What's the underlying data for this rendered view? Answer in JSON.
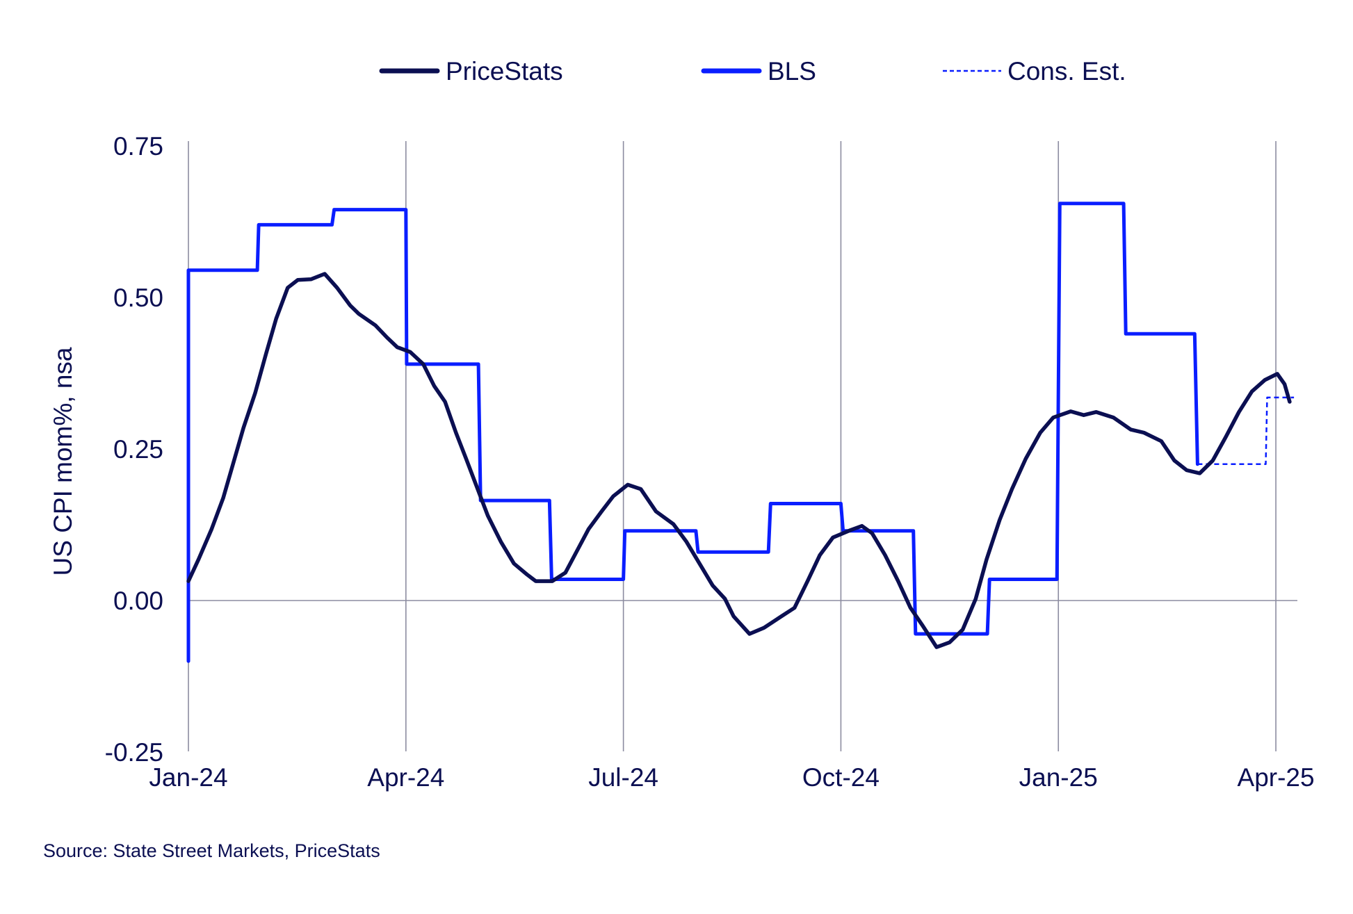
{
  "chart_data": {
    "type": "line",
    "title": "",
    "xlabel": "",
    "ylabel": "US CPI mom%, nsa",
    "ylim": [
      -0.25,
      0.75
    ],
    "yticks": [
      "0.75",
      "0.50",
      "0.25",
      "0.00",
      "-0.25"
    ],
    "ytick_values": [
      0.75,
      0.5,
      0.25,
      0.0,
      -0.25
    ],
    "xticks": [
      "Jan-24",
      "Apr-24",
      "Jul-24",
      "Oct-24",
      "Jan-25",
      "Apr-25"
    ],
    "xtick_values": [
      0,
      3,
      6,
      9,
      12,
      15
    ],
    "x_unit": "months since Jan-24",
    "xlim": [
      0,
      15.25
    ],
    "legend": {
      "placement": "top-center",
      "entries": [
        "PriceStats",
        "BLS",
        "Cons. Est."
      ]
    },
    "colors": {
      "PriceStats": "#0b0f52",
      "BLS": "#0a1eff",
      "Cons. Est.": "#0a1eff",
      "text": "#0b0f52",
      "grid": "#8c8ca0"
    },
    "series": [
      {
        "name": "PriceStats",
        "style": "solid",
        "points": [
          [
            0,
            0.032
          ],
          [
            0.14,
            0.068
          ],
          [
            0.32,
            0.118
          ],
          [
            0.48,
            0.169
          ],
          [
            0.62,
            0.227
          ],
          [
            0.76,
            0.285
          ],
          [
            0.92,
            0.342
          ],
          [
            1.07,
            0.407
          ],
          [
            1.21,
            0.465
          ],
          [
            1.37,
            0.516
          ],
          [
            1.51,
            0.529
          ],
          [
            1.69,
            0.53
          ],
          [
            1.88,
            0.539
          ],
          [
            2.05,
            0.516
          ],
          [
            2.23,
            0.487
          ],
          [
            2.35,
            0.473
          ],
          [
            2.58,
            0.454
          ],
          [
            2.74,
            0.434
          ],
          [
            2.88,
            0.418
          ],
          [
            3.06,
            0.41
          ],
          [
            3.24,
            0.39
          ],
          [
            3.39,
            0.354
          ],
          [
            3.54,
            0.328
          ],
          [
            3.69,
            0.277
          ],
          [
            3.83,
            0.234
          ],
          [
            3.99,
            0.184
          ],
          [
            4.13,
            0.14
          ],
          [
            4.31,
            0.097
          ],
          [
            4.49,
            0.061
          ],
          [
            4.67,
            0.043
          ],
          [
            4.79,
            0.032
          ],
          [
            5.02,
            0.032
          ],
          [
            5.2,
            0.046
          ],
          [
            5.36,
            0.082
          ],
          [
            5.52,
            0.118
          ],
          [
            5.7,
            0.147
          ],
          [
            5.86,
            0.172
          ],
          [
            6.06,
            0.191
          ],
          [
            6.24,
            0.184
          ],
          [
            6.45,
            0.147
          ],
          [
            6.69,
            0.126
          ],
          [
            6.87,
            0.097
          ],
          [
            7.05,
            0.061
          ],
          [
            7.23,
            0.025
          ],
          [
            7.4,
            0.003
          ],
          [
            7.52,
            -0.026
          ],
          [
            7.74,
            -0.055
          ],
          [
            7.94,
            -0.045
          ],
          [
            8.18,
            -0.026
          ],
          [
            8.36,
            -0.012
          ],
          [
            8.54,
            0.032
          ],
          [
            8.71,
            0.075
          ],
          [
            8.89,
            0.104
          ],
          [
            9.13,
            0.116
          ],
          [
            9.29,
            0.123
          ],
          [
            9.43,
            0.111
          ],
          [
            9.61,
            0.075
          ],
          [
            9.79,
            0.032
          ],
          [
            9.96,
            -0.012
          ],
          [
            10.12,
            -0.04
          ],
          [
            10.32,
            -0.077
          ],
          [
            10.5,
            -0.069
          ],
          [
            10.68,
            -0.048
          ],
          [
            10.86,
            0.003
          ],
          [
            11.01,
            0.068
          ],
          [
            11.19,
            0.133
          ],
          [
            11.36,
            0.184
          ],
          [
            11.55,
            0.234
          ],
          [
            11.75,
            0.277
          ],
          [
            11.93,
            0.302
          ],
          [
            12.17,
            0.312
          ],
          [
            12.35,
            0.306
          ],
          [
            12.52,
            0.311
          ],
          [
            12.76,
            0.302
          ],
          [
            13.0,
            0.282
          ],
          [
            13.18,
            0.277
          ],
          [
            13.42,
            0.263
          ],
          [
            13.6,
            0.231
          ],
          [
            13.77,
            0.215
          ],
          [
            13.95,
            0.21
          ],
          [
            14.13,
            0.231
          ],
          [
            14.31,
            0.27
          ],
          [
            14.49,
            0.311
          ],
          [
            14.67,
            0.345
          ],
          [
            14.85,
            0.364
          ],
          [
            15.02,
            0.374
          ],
          [
            15.12,
            0.357
          ],
          [
            15.19,
            0.328
          ]
        ]
      },
      {
        "name": "BLS",
        "style": "step",
        "points": [
          [
            0,
            -0.1
          ],
          [
            0,
            0.545
          ],
          [
            0.95,
            0.545
          ],
          [
            0.97,
            0.62
          ],
          [
            1.98,
            0.62
          ],
          [
            2.01,
            0.645
          ],
          [
            3.0,
            0.645
          ],
          [
            3.01,
            0.39
          ],
          [
            4.0,
            0.39
          ],
          [
            4.03,
            0.165
          ],
          [
            4.98,
            0.165
          ],
          [
            5.01,
            0.035
          ],
          [
            6.0,
            0.035
          ],
          [
            6.02,
            0.115
          ],
          [
            7.0,
            0.115
          ],
          [
            7.03,
            0.08
          ],
          [
            8.0,
            0.08
          ],
          [
            8.03,
            0.16
          ],
          [
            9.0,
            0.16
          ],
          [
            9.03,
            0.115
          ],
          [
            10.0,
            0.115
          ],
          [
            10.03,
            -0.055
          ],
          [
            11.02,
            -0.055
          ],
          [
            11.05,
            0.035
          ],
          [
            11.98,
            0.035
          ],
          [
            12.02,
            0.655
          ],
          [
            12.9,
            0.655
          ],
          [
            12.93,
            0.44
          ],
          [
            13.88,
            0.44
          ],
          [
            13.92,
            0.225
          ]
        ]
      },
      {
        "name": "Cons. Est.",
        "style": "dashed",
        "points": [
          [
            13.92,
            0.225
          ],
          [
            14.86,
            0.225
          ],
          [
            14.88,
            0.335
          ],
          [
            15.25,
            0.335
          ]
        ]
      }
    ]
  },
  "source": "Source: State Street Markets, PriceStats"
}
